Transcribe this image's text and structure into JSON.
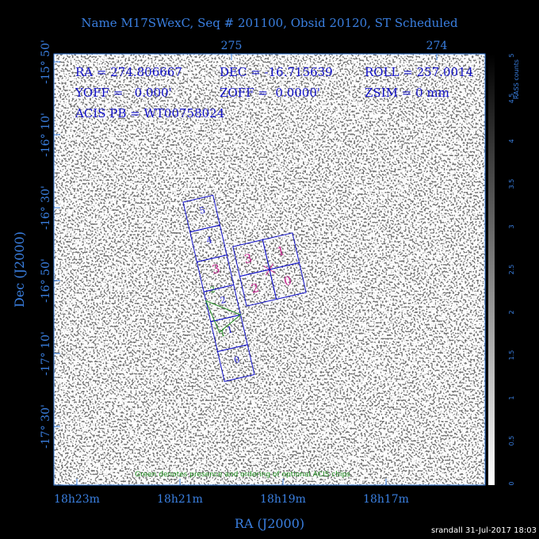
{
  "header": {
    "title": "Name M17SWexC, Seq # 201100, Obsid 20120, ST Scheduled"
  },
  "info": {
    "ra": "RA = 274.806667",
    "dec": "DEC = -16.715639",
    "roll": "ROLL = 257.0014",
    "yoff": "YOFF =   0.000'",
    "zoff": "ZOFF =  0.0000'",
    "zsim": "ZSIM = 0 mm",
    "pb": "ACIS PB = WT00758024"
  },
  "axes": {
    "top_ticks": [
      "275",
      "274"
    ],
    "left_ticks": [
      "-15° 50'",
      "-16° 10'",
      "-16° 30'",
      "-16° 50'",
      "-17° 10'",
      "-17° 30'"
    ],
    "bottom_ticks": [
      "18h23m",
      "18h21m",
      "18h19m",
      "18h17m"
    ],
    "x_label": "RA (J2000)",
    "y_label": "Dec (J2000)"
  },
  "colorbar": {
    "label": "RASS counts",
    "ticks": [
      "0",
      "0.5",
      "1",
      "1.5",
      "2",
      "2.5",
      "3",
      "3.5",
      "4",
      "4.5",
      "5"
    ]
  },
  "chips": {
    "s_array": [
      "5",
      "4",
      "3",
      "2",
      "1",
      "0"
    ],
    "i_array": [
      "3",
      "1",
      "2",
      "0"
    ],
    "optional": [
      "2",
      "1"
    ]
  },
  "note": "Green denotes presence and ordering of optional ACIS chips",
  "footer": "srandall 31-Jul-2017 18:03"
}
